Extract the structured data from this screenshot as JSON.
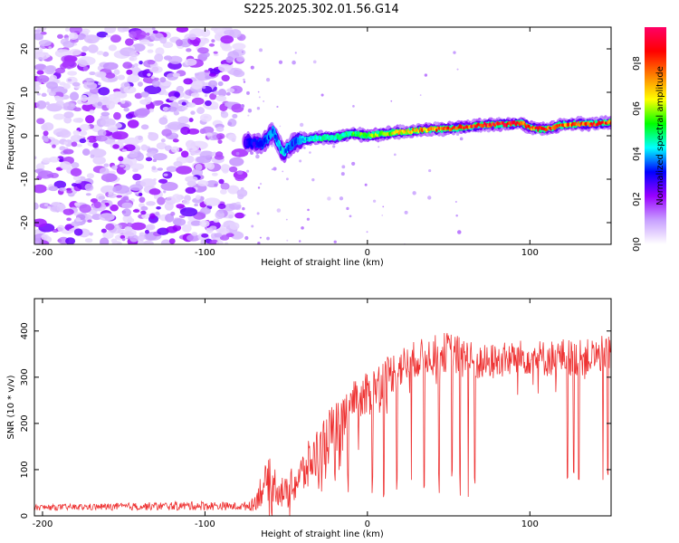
{
  "title": "S225.2025.302.01.56.G14",
  "chart_data": [
    {
      "type": "heatmap",
      "name": "spectrogram",
      "xlabel": "Height of straight line (km)",
      "ylabel": "Frequency (Hz)",
      "xlim": [
        -205,
        150
      ],
      "ylim": [
        -25,
        25
      ],
      "xticks": [
        -200,
        -100,
        0,
        100
      ],
      "yticks": [
        -20,
        -10,
        0,
        10,
        20
      ],
      "grid": false,
      "noise_region_x": [
        -205,
        -77
      ],
      "ridge": {
        "x": [
          -75,
          -65,
          -58,
          -52,
          -45,
          -38,
          -30,
          -20,
          -10,
          0,
          10,
          20,
          30,
          40,
          50,
          60,
          70,
          80,
          90,
          95,
          100,
          110,
          120,
          130,
          140,
          150
        ],
        "freq": [
          -1.5,
          -2,
          1,
          -4,
          -1.5,
          -0.8,
          -0.5,
          -0.5,
          0.5,
          0,
          0.5,
          0.8,
          1.2,
          1.5,
          1.6,
          2,
          2.5,
          2.6,
          2.8,
          3,
          1.8,
          1.5,
          2.5,
          2.7,
          2.8,
          3
        ],
        "amp": [
          0.3,
          0.35,
          0.4,
          0.45,
          0.35,
          0.45,
          0.5,
          0.5,
          0.55,
          0.6,
          0.65,
          0.7,
          0.75,
          0.8,
          0.85,
          0.85,
          0.9,
          0.9,
          0.95,
          0.9,
          0.85,
          0.9,
          0.8,
          0.85,
          0.9,
          0.85
        ]
      },
      "colorbar": {
        "label": "Normalized spectral amplitude",
        "ticks": [
          "0.0",
          "0.2",
          "0.4",
          "0.6",
          "0.8"
        ],
        "range": [
          0,
          0.96
        ],
        "colors": [
          "#ffffff",
          "#c8a0ff",
          "#9900ff",
          "#0000ff",
          "#00ffff",
          "#00ff00",
          "#ffff00",
          "#ff8000",
          "#ff0000",
          "#ff0066"
        ]
      }
    },
    {
      "type": "line",
      "name": "snr",
      "xlabel": "Height of straight line (km)",
      "ylabel": "SNR (10 * v/v)",
      "xlim": [
        -205,
        150
      ],
      "ylim": [
        0,
        470
      ],
      "xticks": [
        -200,
        -100,
        0,
        100
      ],
      "yticks": [
        0,
        100,
        200,
        300,
        400
      ],
      "line_color": "#ee3333",
      "series_envelope": {
        "x": [
          -205,
          -150,
          -100,
          -77,
          -70,
          -65,
          -60,
          -55,
          -50,
          -45,
          -40,
          -30,
          -20,
          -10,
          0,
          10,
          20,
          30,
          40,
          50,
          60,
          70,
          80,
          90,
          100,
          110,
          120,
          130,
          140,
          150
        ],
        "mean": [
          18,
          20,
          22,
          20,
          25,
          60,
          80,
          60,
          45,
          70,
          90,
          140,
          190,
          230,
          260,
          300,
          320,
          340,
          350,
          355,
          340,
          330,
          335,
          340,
          345,
          340,
          345,
          340,
          345,
          355
        ],
        "amp": [
          6,
          8,
          10,
          8,
          15,
          40,
          45,
          40,
          35,
          45,
          50,
          60,
          60,
          60,
          50,
          45,
          45,
          40,
          40,
          45,
          45,
          40,
          40,
          40,
          40,
          40,
          40,
          40,
          40,
          40
        ]
      },
      "dropouts_x": [
        -20,
        -12,
        3,
        10,
        18,
        27,
        35,
        44,
        52,
        57,
        62,
        66,
        123,
        127,
        130,
        145,
        148
      ]
    }
  ]
}
